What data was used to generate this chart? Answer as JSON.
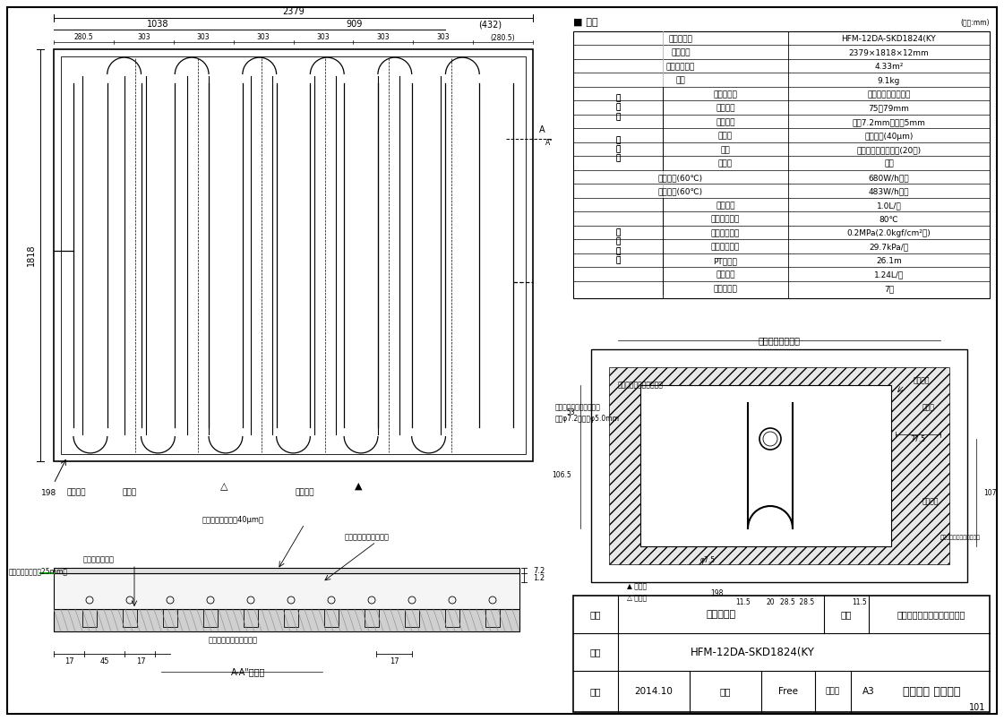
{
  "bg_color": "#ffffff",
  "line_color": "#000000",
  "title_spec": "■ 仕様",
  "unit_note": "(単位:mm)",
  "spec_rows": [
    [
      "名称・型式",
      "HFM-12DA-SKD1824(KY"
    ],
    [
      "外形寨法",
      "2379×1818×12mm"
    ],
    [
      "有効放熱面積",
      "4.33m²"
    ],
    [
      "質量",
      "9.1kg"
    ],
    [
      "材質・材料",
      "架橋ポリエチレン管"
    ],
    [
      "管ピッチ",
      "75～79mm"
    ],
    [
      "管サイズ",
      "外彧7.2mm　内彧5mm"
    ],
    [
      "表面材",
      "アルミ箔(40μm)"
    ],
    [
      "基材",
      "ポリスチレン発泡体(20倍)"
    ],
    [
      "裏面材",
      "なし"
    ],
    [
      "投入熱量(60℃)",
      "680W/h・枚"
    ],
    [
      "暖房能力(60℃)",
      "483W/h・枚"
    ],
    [
      "標準流量",
      "1.0L/分"
    ],
    [
      "最高使用温度",
      "80℃"
    ],
    [
      "最高使用圧力",
      "0.2MPa(2.0kgf/cm²　)"
    ],
    [
      "標準流量抵抗",
      "29.7kPa/枚"
    ],
    [
      "PT相当長",
      "26.1m"
    ],
    [
      "保有水量",
      "1.24L/枚"
    ],
    [
      "小根太溝数",
      "7本"
    ]
  ],
  "row_groups": [
    {
      "label": "放熱管",
      "rows": [
        4,
        5,
        6
      ],
      "rowspan": 3
    },
    {
      "label": "マット",
      "rows": [
        7,
        8,
        9
      ],
      "rowspan": 3
    },
    {
      "label": "設計関係",
      "rows": [
        12,
        13,
        14,
        15,
        16,
        17,
        18
      ],
      "rowspan": 7
    }
  ],
  "bottom_table": {
    "meisho": "外形寨法図",
    "hinmei": "小根太入りハード温水マット",
    "katashiki": "HFM-12DA-SKD1824(KY",
    "sakusei": "2014.10",
    "shakudo": "Free",
    "size": "A3",
    "company": "リンナイ 株式会社"
  },
  "fig_width": 11.21,
  "fig_height": 8.05
}
